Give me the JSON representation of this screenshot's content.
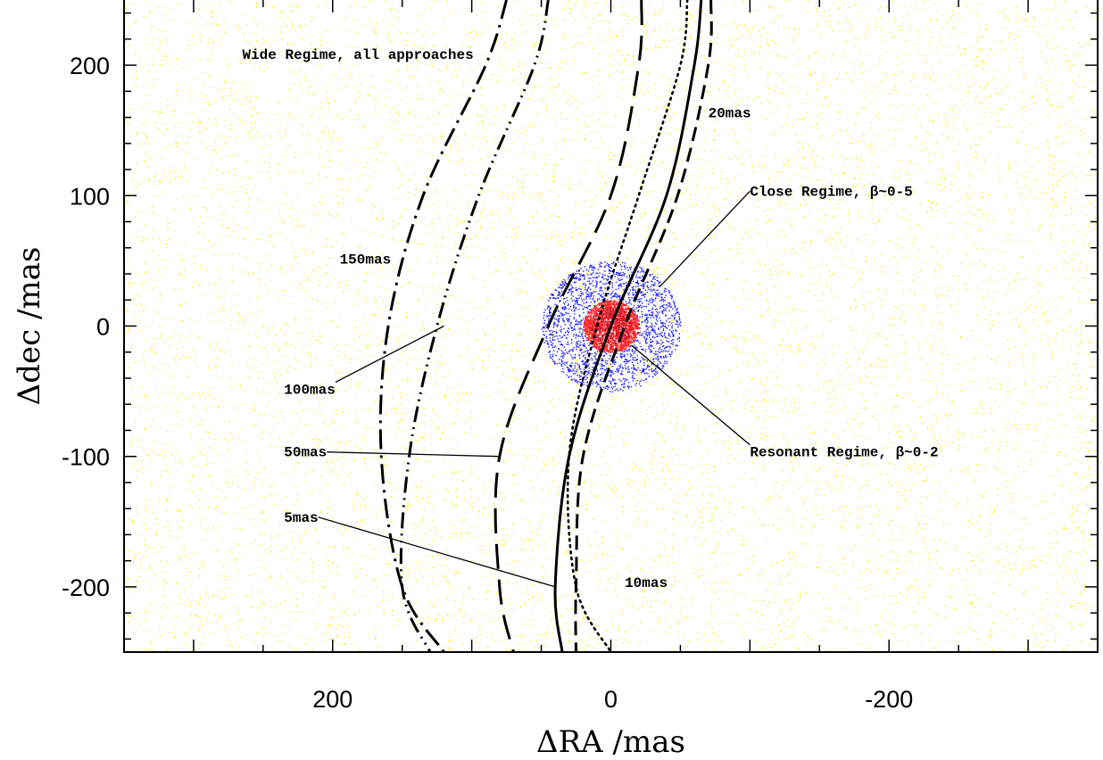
{
  "chart_data": {
    "type": "scatter",
    "xlabel": "ΔRA /mas",
    "ylabel": "Δdec /mas",
    "xlim": [
      350,
      -350
    ],
    "ylim": [
      -250,
      250
    ],
    "x_reversed": true,
    "x_ticks": [
      200,
      0,
      -200
    ],
    "x_tick_labels": [
      "200",
      "0",
      "-200"
    ],
    "y_ticks": [
      200,
      100,
      0,
      -100,
      -200
    ],
    "y_tick_labels": [
      "200",
      "100",
      "0",
      "-100",
      "-200"
    ],
    "grid": false,
    "colors": {
      "wide": "#ffee00",
      "close": "#1a1aff",
      "resonant": "#ff2020",
      "resonant_core": "#b01030",
      "curves": "#000000"
    },
    "regimes": [
      {
        "name": "Wide Regime, all approaches",
        "color": "#ffee00",
        "region": "entire plot"
      },
      {
        "name": "Close Regime, β~0-5",
        "color": "#1a1aff",
        "center": [
          0,
          0
        ],
        "radius": 50
      },
      {
        "name": "Resonant Regime, β~0-2",
        "color": "#ff2020",
        "center": [
          0,
          0
        ],
        "radius": 20
      }
    ],
    "series": [
      {
        "name": "5mas",
        "style": "solid",
        "points": [
          [
            -65,
            250
          ],
          [
            -60,
            200
          ],
          [
            -40,
            100
          ],
          [
            0,
            0
          ],
          [
            30,
            -100
          ],
          [
            40,
            -200
          ],
          [
            35,
            -250
          ]
        ]
      },
      {
        "name": "10mas",
        "style": "dotted",
        "points": [
          [
            -55,
            250
          ],
          [
            -50,
            200
          ],
          [
            -20,
            100
          ],
          [
            10,
            0
          ],
          [
            30,
            -100
          ],
          [
            25,
            -200
          ],
          [
            0,
            -250
          ]
        ]
      },
      {
        "name": "20mas",
        "style": "dashed",
        "points": [
          [
            -72,
            250
          ],
          [
            -70,
            200
          ],
          [
            -48,
            100
          ],
          [
            -10,
            0
          ],
          [
            20,
            -100
          ],
          [
            25,
            -200
          ],
          [
            25,
            -250
          ]
        ]
      },
      {
        "name": "50mas",
        "style": "long-dashed",
        "points": [
          [
            -22,
            250
          ],
          [
            -20,
            200
          ],
          [
            0,
            100
          ],
          [
            45,
            0
          ],
          [
            80,
            -100
          ],
          [
            80,
            -200
          ],
          [
            70,
            -250
          ]
        ]
      },
      {
        "name": "100mas",
        "style": "dash-dot-dot",
        "points": [
          [
            45,
            250
          ],
          [
            55,
            200
          ],
          [
            95,
            100
          ],
          [
            125,
            0
          ],
          [
            145,
            -100
          ],
          [
            150,
            -200
          ],
          [
            130,
            -250
          ]
        ]
      },
      {
        "name": "150mas",
        "style": "dash-dot",
        "points": [
          [
            75,
            250
          ],
          [
            90,
            200
          ],
          [
            135,
            100
          ],
          [
            160,
            0
          ],
          [
            165,
            -100
          ],
          [
            150,
            -200
          ],
          [
            120,
            -250
          ]
        ]
      }
    ],
    "annotations": [
      {
        "text": "Wide Regime, all approaches",
        "at": [
          265,
          205
        ]
      },
      {
        "text": "20mas",
        "at": [
          -70,
          160
        ]
      },
      {
        "text": "Close Regime, β~0-5",
        "at": [
          -100,
          100
        ],
        "arrow_to": [
          -35,
          30
        ]
      },
      {
        "text": "150mas",
        "at": [
          195,
          48
        ]
      },
      {
        "text": "100mas",
        "at": [
          235,
          -52
        ],
        "arrow_to": [
          120,
          0
        ]
      },
      {
        "text": "50mas",
        "at": [
          235,
          -100
        ],
        "arrow_to": [
          80,
          -100
        ]
      },
      {
        "text": "Resonant Regime, β~0-2",
        "at": [
          -100,
          -100
        ],
        "arrow_to": [
          -15,
          -15
        ]
      },
      {
        "text": "5mas",
        "at": [
          235,
          -150
        ],
        "arrow_to": [
          40,
          -200
        ]
      },
      {
        "text": "10mas",
        "at": [
          -10,
          -200
        ]
      }
    ]
  }
}
